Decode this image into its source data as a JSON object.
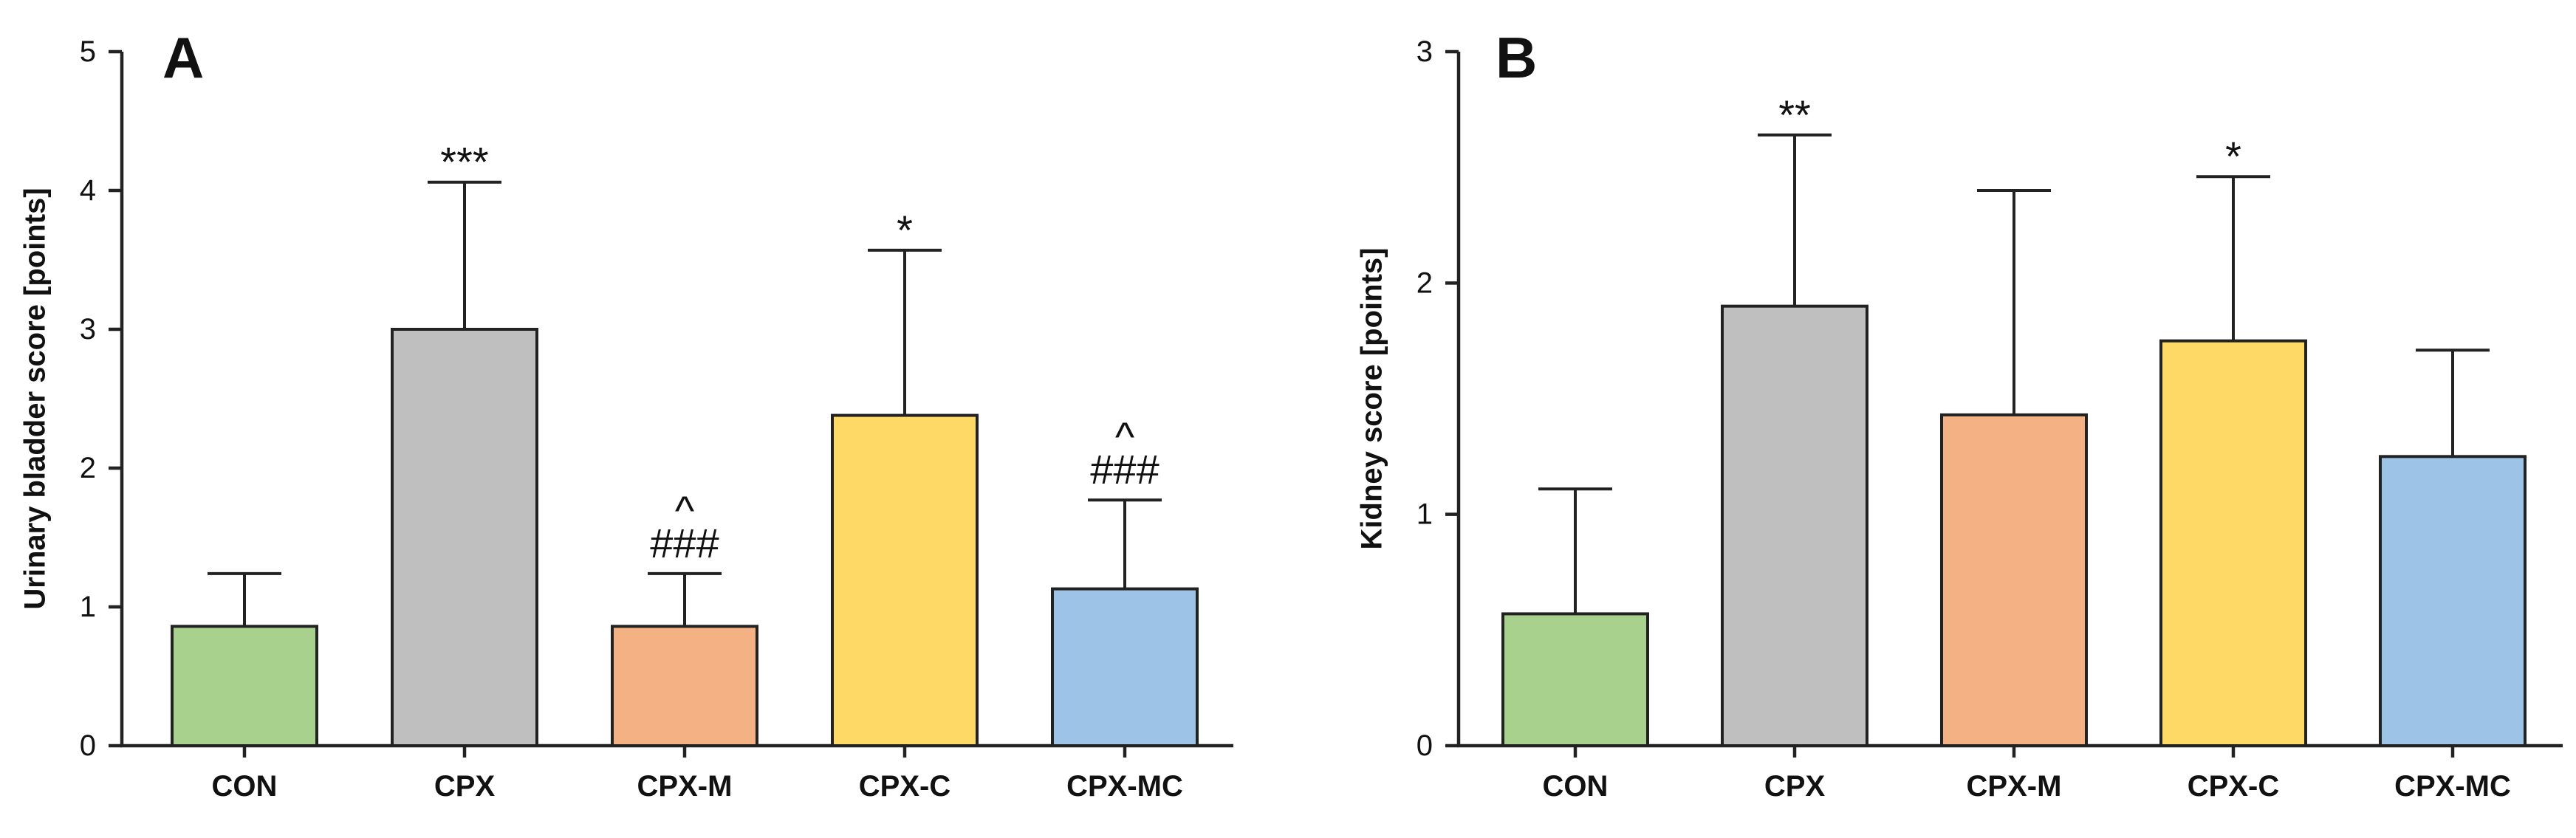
{
  "chart_data": [
    {
      "panel": "A",
      "type": "bar",
      "ylabel": "Urinary bladder score [points]",
      "ylim": [
        0,
        5
      ],
      "yticks": [
        0,
        1,
        2,
        3,
        4,
        5
      ],
      "categories": [
        "CON",
        "CPX",
        "CPX-M",
        "CPX-C",
        "CPX-MC"
      ],
      "values": [
        0.86,
        3.0,
        0.86,
        2.38,
        1.13
      ],
      "errors": [
        0.38,
        1.06,
        0.38,
        1.19,
        0.64
      ],
      "annotations": [
        [],
        [
          "***"
        ],
        [
          "###",
          "^"
        ],
        [
          "*"
        ],
        [
          "###",
          "^"
        ]
      ],
      "colors": [
        "#a9d18e",
        "#bfbfbf",
        "#f4b183",
        "#ffd966",
        "#9dc3e6"
      ]
    },
    {
      "panel": "B",
      "type": "bar",
      "ylabel": "Kidney score [points]",
      "ylim": [
        0,
        3
      ],
      "yticks": [
        0,
        1,
        2,
        3
      ],
      "categories": [
        "CON",
        "CPX",
        "CPX-M",
        "CPX-C",
        "CPX-MC"
      ],
      "values": [
        0.57,
        1.9,
        1.43,
        1.75,
        1.25
      ],
      "errors": [
        0.54,
        0.74,
        0.97,
        0.71,
        0.46
      ],
      "annotations": [
        [],
        [
          "**"
        ],
        [],
        [
          "*"
        ],
        []
      ],
      "colors": [
        "#a9d18e",
        "#bfbfbf",
        "#f4b183",
        "#ffd966",
        "#9dc3e6"
      ]
    }
  ]
}
